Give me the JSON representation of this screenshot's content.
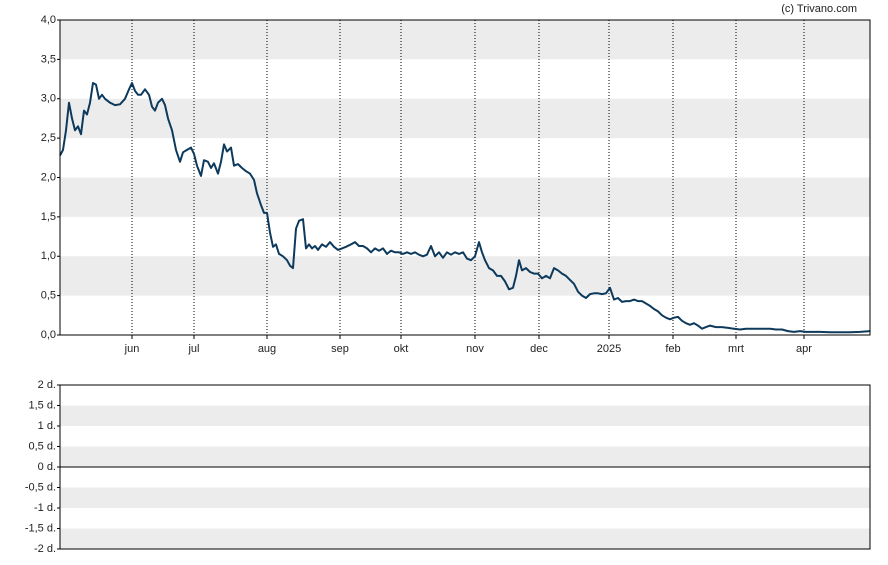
{
  "watermark": "(c) Trivano.com",
  "chart_data": [
    {
      "type": "line",
      "xlim": [
        0,
        810
      ],
      "xticks": [
        {
          "value": 72,
          "label": "jun"
        },
        {
          "value": 134,
          "label": "jul"
        },
        {
          "value": 207,
          "label": "aug"
        },
        {
          "value": 280,
          "label": "sep"
        },
        {
          "value": 341,
          "label": "okt"
        },
        {
          "value": 415,
          "label": "nov"
        },
        {
          "value": 479,
          "label": "dec"
        },
        {
          "value": 549,
          "label": "2025"
        },
        {
          "value": 613,
          "label": "feb"
        },
        {
          "value": 676,
          "label": "mrt"
        },
        {
          "value": 744,
          "label": "apr"
        }
      ],
      "ylim": [
        0,
        4
      ],
      "yticks": [
        {
          "value": 0,
          "label": "0,0"
        },
        {
          "value": 0.5,
          "label": "0,5"
        },
        {
          "value": 1,
          "label": "1,0"
        },
        {
          "value": 1.5,
          "label": "1,5"
        },
        {
          "value": 2,
          "label": "2,0"
        },
        {
          "value": 2.5,
          "label": "2,5"
        },
        {
          "value": 3,
          "label": "3,0"
        },
        {
          "value": 3.5,
          "label": "3,5"
        },
        {
          "value": 4,
          "label": "4,0"
        }
      ],
      "grid": true,
      "x": [
        0,
        3,
        6,
        9,
        12,
        15,
        18,
        21,
        24,
        27,
        30,
        33,
        36,
        39,
        42,
        45,
        50,
        55,
        60,
        65,
        69,
        72,
        75,
        78,
        81,
        85,
        89,
        92,
        95,
        98,
        102,
        105,
        108,
        112,
        116,
        120,
        123,
        127,
        131,
        134,
        137,
        141,
        144,
        148,
        151,
        154,
        158,
        161,
        164,
        167,
        171,
        174,
        178,
        182,
        186,
        190,
        194,
        197,
        201,
        204,
        207,
        210,
        213,
        216,
        219,
        223,
        227,
        230,
        233,
        236,
        239,
        243,
        246,
        249,
        252,
        255,
        258,
        262,
        266,
        270,
        274,
        278,
        282,
        286,
        291,
        295,
        299,
        303,
        307,
        311,
        315,
        319,
        323,
        327,
        331,
        335,
        339,
        343,
        347,
        351,
        355,
        359,
        363,
        367,
        371,
        375,
        379,
        383,
        387,
        391,
        395,
        399,
        403,
        407,
        411,
        415,
        419,
        422,
        425,
        429,
        433,
        437,
        441,
        445,
        449,
        453,
        456,
        459,
        462,
        466,
        470,
        474,
        478,
        482,
        486,
        490,
        494,
        498,
        502,
        506,
        510,
        514,
        518,
        522,
        526,
        530,
        534,
        538,
        542,
        546,
        550,
        554,
        558,
        562,
        566,
        570,
        574,
        578,
        582,
        586,
        590,
        594,
        598,
        602,
        606,
        610,
        614,
        618,
        622,
        626,
        630,
        634,
        638,
        642,
        646,
        650,
        656,
        662,
        668,
        674,
        680,
        686,
        692,
        698,
        704,
        710,
        716,
        722,
        728,
        734,
        740,
        746,
        752,
        760,
        770,
        780,
        790,
        800,
        810
      ],
      "series": [
        {
          "name": "koers",
          "color": "#0d3a5c",
          "values": [
            2.28,
            2.35,
            2.6,
            2.95,
            2.75,
            2.6,
            2.65,
            2.55,
            2.85,
            2.8,
            2.95,
            3.2,
            3.18,
            3.0,
            3.05,
            3.0,
            2.95,
            2.92,
            2.93,
            3.0,
            3.12,
            3.2,
            3.1,
            3.05,
            3.05,
            3.12,
            3.05,
            2.9,
            2.85,
            2.95,
            3.0,
            2.92,
            2.75,
            2.6,
            2.35,
            2.2,
            2.32,
            2.35,
            2.38,
            2.3,
            2.15,
            2.02,
            2.22,
            2.2,
            2.12,
            2.18,
            2.05,
            2.2,
            2.42,
            2.33,
            2.38,
            2.15,
            2.17,
            2.12,
            2.08,
            2.05,
            1.97,
            1.8,
            1.65,
            1.55,
            1.55,
            1.3,
            1.12,
            1.15,
            1.03,
            1.0,
            0.95,
            0.88,
            0.85,
            1.35,
            1.45,
            1.47,
            1.1,
            1.15,
            1.1,
            1.13,
            1.08,
            1.15,
            1.12,
            1.18,
            1.12,
            1.08,
            1.1,
            1.12,
            1.15,
            1.18,
            1.13,
            1.13,
            1.1,
            1.05,
            1.1,
            1.07,
            1.1,
            1.03,
            1.07,
            1.05,
            1.05,
            1.03,
            1.05,
            1.03,
            1.05,
            1.02,
            1.0,
            1.02,
            1.13,
            1.0,
            1.05,
            0.98,
            1.05,
            1.02,
            1.05,
            1.03,
            1.05,
            0.97,
            0.95,
            1.0,
            1.18,
            1.05,
            0.95,
            0.85,
            0.82,
            0.75,
            0.75,
            0.68,
            0.58,
            0.6,
            0.75,
            0.95,
            0.82,
            0.85,
            0.8,
            0.78,
            0.78,
            0.72,
            0.75,
            0.72,
            0.85,
            0.82,
            0.78,
            0.75,
            0.7,
            0.65,
            0.55,
            0.5,
            0.47,
            0.52,
            0.53,
            0.53,
            0.52,
            0.53,
            0.6,
            0.45,
            0.47,
            0.42,
            0.43,
            0.43,
            0.45,
            0.43,
            0.43,
            0.4,
            0.37,
            0.33,
            0.3,
            0.25,
            0.22,
            0.2,
            0.22,
            0.23,
            0.18,
            0.15,
            0.13,
            0.15,
            0.12,
            0.08,
            0.1,
            0.12,
            0.1,
            0.1,
            0.09,
            0.08,
            0.07,
            0.08,
            0.08,
            0.08,
            0.08,
            0.08,
            0.07,
            0.07,
            0.05,
            0.04,
            0.05,
            0.04,
            0.04,
            0.04,
            0.035,
            0.035,
            0.035,
            0.04,
            0.05
          ]
        }
      ]
    },
    {
      "type": "line",
      "ylim": [
        -2,
        2
      ],
      "yticks": [
        {
          "value": 2,
          "label": "2 d."
        },
        {
          "value": 1.5,
          "label": "1,5 d."
        },
        {
          "value": 1,
          "label": "1 d."
        },
        {
          "value": 0.5,
          "label": "0,5 d."
        },
        {
          "value": 0,
          "label": "0 d."
        },
        {
          "value": -0.5,
          "label": "-0,5 d."
        },
        {
          "value": -1,
          "label": "-1 d."
        },
        {
          "value": -1.5,
          "label": "-1,5 d."
        },
        {
          "value": -2,
          "label": "-2 d."
        }
      ],
      "series": []
    }
  ]
}
